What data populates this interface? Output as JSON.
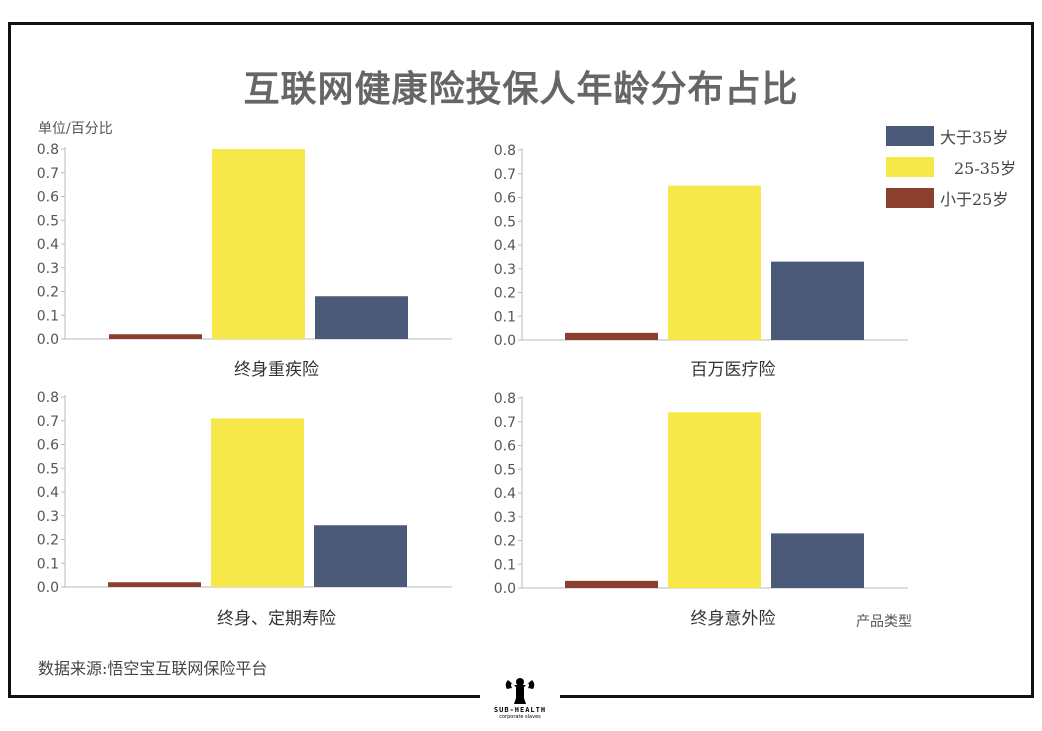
{
  "title": "互联网健康险投保人年龄分布占比",
  "unit_label": "单位/百分比",
  "source": "数据来源:悟空宝互联网保险平台",
  "x_axis_title": "产品类型",
  "logo": {
    "text": "SUB-HEALTH",
    "subtext": "corporate slaves",
    "icon": "bodybuilder-icon"
  },
  "legend": [
    {
      "label": "大于35岁",
      "color": "#4a5a78"
    },
    {
      "label": "25-35岁",
      "color": "#f7e84a"
    },
    {
      "label": "小于25岁",
      "color": "#8b3f2f"
    }
  ],
  "chart_data": [
    {
      "type": "bar",
      "xlabel": "终身重疾险",
      "ylim": [
        0,
        0.8
      ],
      "yticks": [
        "0.0",
        "0.1",
        "0.2",
        "0.3",
        "0.4",
        "0.5",
        "0.6",
        "0.7",
        "0.8"
      ],
      "series": [
        {
          "name": "小于25岁",
          "values": [
            0.02
          ]
        },
        {
          "name": "25-35岁",
          "values": [
            0.8
          ]
        },
        {
          "name": "大于35岁",
          "values": [
            0.18
          ]
        }
      ]
    },
    {
      "type": "bar",
      "xlabel": "百万医疗险",
      "ylim": [
        0,
        0.8
      ],
      "yticks": [
        "0.0",
        "0.1",
        "0.2",
        "0.3",
        "0.4",
        "0.5",
        "0.6",
        "0.7",
        "0.8"
      ],
      "series": [
        {
          "name": "小于25岁",
          "values": [
            0.03
          ]
        },
        {
          "name": "25-35岁",
          "values": [
            0.65
          ]
        },
        {
          "name": "大于35岁",
          "values": [
            0.33
          ]
        }
      ]
    },
    {
      "type": "bar",
      "xlabel": "终身、定期寿险",
      "ylim": [
        0,
        0.8
      ],
      "yticks": [
        "0.0",
        "0.1",
        "0.2",
        "0.3",
        "0.4",
        "0.5",
        "0.6",
        "0.7",
        "0.8"
      ],
      "series": [
        {
          "name": "小于25岁",
          "values": [
            0.02
          ]
        },
        {
          "name": "25-35岁",
          "values": [
            0.71
          ]
        },
        {
          "name": "大于35岁",
          "values": [
            0.26
          ]
        }
      ]
    },
    {
      "type": "bar",
      "xlabel": "终身意外险",
      "ylim": [
        0,
        0.8
      ],
      "yticks": [
        "0.0",
        "0.1",
        "0.2",
        "0.3",
        "0.4",
        "0.5",
        "0.6",
        "0.7",
        "0.8"
      ],
      "series": [
        {
          "name": "小于25岁",
          "values": [
            0.03
          ]
        },
        {
          "name": "25-35岁",
          "values": [
            0.74
          ]
        },
        {
          "name": "大于35岁",
          "values": [
            0.23
          ]
        }
      ]
    }
  ]
}
